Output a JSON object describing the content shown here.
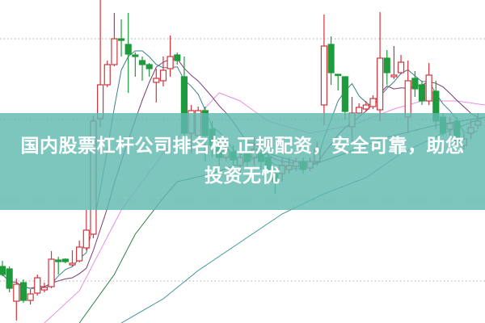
{
  "banner": {
    "text": "国内股票杠杆公司排名榜 正规配资，安全可靠，助您投资无忧"
  },
  "chart_data": {
    "type": "candlestick",
    "title": "",
    "ylim": [
      0,
      400
    ],
    "gridlines": [
      52,
      152,
      252,
      352
    ],
    "colors": {
      "up": "#d0343c",
      "down": "#1f9a3c",
      "ma5": "#3d7f8a",
      "ma10": "#7a3a70",
      "pink": "#e890e2",
      "green_long": "#2f7d4e",
      "teal_long": "#3f9598",
      "grid": "#aaaaaa"
    },
    "candles": [
      [
        70,
        60,
        77,
        58
      ],
      [
        67,
        43,
        70,
        38
      ],
      [
        27,
        48,
        55,
        3
      ],
      [
        50,
        28,
        54,
        25
      ],
      [
        28,
        36,
        42,
        23
      ],
      [
        37,
        56,
        60,
        34
      ],
      [
        41,
        44,
        50,
        38
      ],
      [
        45,
        79,
        89,
        43
      ],
      [
        78,
        76,
        82,
        60
      ],
      [
        79,
        76,
        80,
        74
      ],
      [
        72,
        74,
        90,
        70
      ],
      [
        77,
        94,
        102,
        75
      ],
      [
        93,
        115,
        140,
        90
      ],
      [
        110,
        250,
        257,
        105
      ],
      [
        253,
        295,
        400,
        243
      ],
      [
        295,
        320,
        325,
        292
      ],
      [
        320,
        352,
        384,
        318
      ],
      [
        352,
        350,
        376,
        330
      ],
      [
        345,
        333,
        384,
        285
      ],
      [
        332,
        330,
        335,
        305
      ],
      [
        325,
        320,
        330,
        300
      ],
      [
        320,
        315,
        322,
        305
      ],
      [
        298,
        303,
        315,
        273
      ],
      [
        300,
        313,
        330,
        293
      ],
      [
        315,
        330,
        356,
        305
      ],
      [
        332,
        325,
        335,
        320
      ],
      [
        305,
        235,
        330,
        210
      ],
      [
        235,
        263,
        270,
        210
      ],
      [
        232,
        263,
        268,
        225
      ],
      [
        263,
        232,
        268,
        200
      ],
      [
        240,
        220,
        250,
        205
      ],
      [
        220,
        205,
        230,
        195
      ],
      [
        205,
        215,
        225,
        200
      ],
      [
        212,
        202,
        220,
        195
      ],
      [
        195,
        205,
        215,
        185
      ],
      [
        210,
        200,
        215,
        190
      ],
      [
        205,
        215,
        230,
        195
      ],
      [
        210,
        200,
        225,
        190
      ],
      [
        205,
        190,
        210,
        185
      ],
      [
        185,
        175,
        195,
        160
      ],
      [
        185,
        195,
        205,
        175
      ],
      [
        190,
        195,
        205,
        185
      ],
      [
        194,
        200,
        205,
        188
      ],
      [
        200,
        190,
        205,
        185
      ],
      [
        192,
        200,
        205,
        188
      ],
      [
        200,
        215,
        225,
        195
      ],
      [
        270,
        343,
        382,
        245
      ],
      [
        345,
        310,
        355,
        295
      ],
      [
        308,
        307,
        308,
        288
      ],
      [
        305,
        262,
        305,
        252
      ],
      [
        243,
        260,
        280,
        225
      ],
      [
        260,
        267,
        272,
        258
      ],
      [
        265,
        270,
        275,
        262
      ],
      [
        268,
        278,
        282,
        265
      ],
      [
        264,
        328,
        385,
        250
      ],
      [
        328,
        310,
        338,
        295
      ],
      [
        305,
        307,
        343,
        302
      ],
      [
        310,
        323,
        332,
        308
      ],
      [
        255,
        300,
        325,
        235
      ],
      [
        303,
        290,
        312,
        280
      ],
      [
        295,
        275,
        300,
        270
      ],
      [
        275,
        307,
        322,
        270
      ],
      [
        287,
        250,
        300,
        240
      ],
      [
        255,
        235,
        260,
        232
      ],
      [
        240,
        247,
        255,
        232
      ],
      [
        250,
        222,
        255,
        218
      ],
      [
        220,
        228,
        235,
        215
      ],
      [
        235,
        242,
        252,
        228
      ],
      [
        245,
        250,
        260,
        240
      ]
    ],
    "lines": {
      "pink": [
        [
          6,
          0
        ],
        [
          11,
          40
        ],
        [
          17,
          140
        ],
        [
          23,
          210
        ],
        [
          31,
          285
        ],
        [
          34,
          275
        ],
        [
          38,
          250
        ],
        [
          44,
          235
        ],
        [
          50,
          245
        ],
        [
          56,
          265
        ],
        [
          60,
          275
        ],
        [
          65,
          275
        ],
        [
          69,
          270
        ]
      ],
      "green_long": [
        [
          11,
          0
        ],
        [
          16,
          60
        ],
        [
          19,
          110
        ],
        [
          23,
          155
        ],
        [
          25,
          175
        ],
        [
          30,
          185
        ],
        [
          38,
          210
        ],
        [
          44,
          195
        ],
        [
          49,
          210
        ],
        [
          55,
          230
        ],
        [
          62,
          245
        ],
        [
          69,
          255
        ]
      ],
      "teal_long": [
        [
          17,
          0
        ],
        [
          23,
          30
        ],
        [
          28,
          65
        ],
        [
          34,
          100
        ],
        [
          40,
          135
        ],
        [
          46,
          160
        ],
        [
          52,
          180
        ],
        [
          57,
          210
        ],
        [
          63,
          235
        ],
        [
          69,
          255
        ]
      ]
    }
  }
}
